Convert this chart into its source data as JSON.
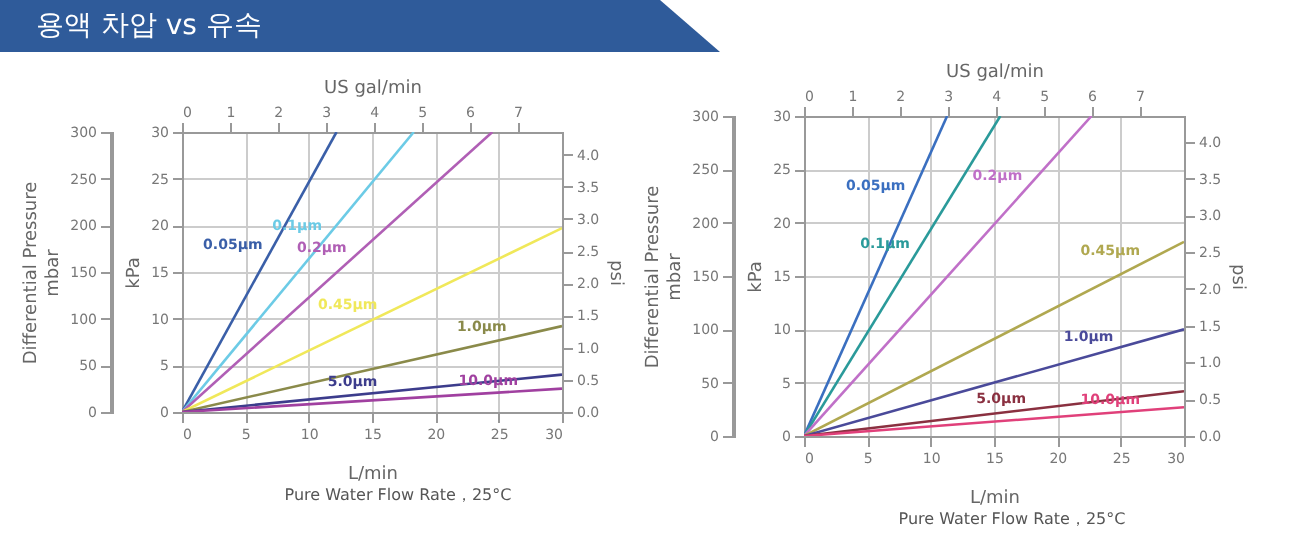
{
  "chart_data": [
    {
      "type": "line",
      "title": "용액 차압 vs 유속",
      "xlabel": "L/min",
      "x2label": "US gal/min",
      "ylabel": "kPa",
      "y2label": "psi",
      "y3label": "Differential Pressure\nmbar",
      "annotations": [
        "Pure Water Flow Rate，25°C"
      ],
      "xlim": [
        0,
        30
      ],
      "xticks": [
        0,
        5,
        10,
        15,
        20,
        25,
        30
      ],
      "x2lim": [
        0,
        7.93
      ],
      "x2ticks": [
        0,
        1,
        2,
        3,
        4,
        5,
        6,
        7
      ],
      "ylim": [
        0,
        30
      ],
      "yticks": [
        0,
        5,
        10,
        15,
        20,
        25,
        30
      ],
      "y2lim": [
        0,
        4.35
      ],
      "y2ticks": [
        {
          "value": 0,
          "label": "0.0"
        },
        {
          "value": 0.5,
          "label": "0.5"
        },
        {
          "value": 1,
          "label": "1.0"
        },
        {
          "value": 1.5,
          "label": "1.5"
        },
        {
          "value": 2,
          "label": "2.0"
        },
        {
          "value": 2.5,
          "label": "2.5"
        },
        {
          "value": 3,
          "label": "3.0"
        },
        {
          "value": 3.5,
          "label": "3.5"
        },
        {
          "value": 4,
          "label": "4.0"
        }
      ],
      "y3lim": [
        0,
        300
      ],
      "y3ticks": [
        0,
        50,
        100,
        150,
        200,
        250,
        300
      ],
      "grid": true,
      "legend": false,
      "series": [
        {
          "name": "0.05μm",
          "color": "#3a5fa8",
          "x": [
            0,
            12.2
          ],
          "values": [
            0,
            30
          ]
        },
        {
          "name": "0.1μm",
          "color": "#6ccbe6",
          "x": [
            0,
            18.3
          ],
          "values": [
            0,
            30
          ]
        },
        {
          "name": "0.2μm",
          "color": "#b05fb5",
          "x": [
            0,
            24.5
          ],
          "values": [
            0,
            30
          ]
        },
        {
          "name": "0.45μm",
          "color": "#f0e85a",
          "x": [
            0,
            30
          ],
          "values": [
            0,
            19.7
          ]
        },
        {
          "name": "1.0μm",
          "color": "#8a8a4a",
          "x": [
            0,
            30
          ],
          "values": [
            0,
            9.2
          ]
        },
        {
          "name": "5.0μm",
          "color": "#3c3c8c",
          "x": [
            0,
            30
          ],
          "values": [
            0,
            4
          ]
        },
        {
          "name": "10.0μm",
          "color": "#a040a0",
          "x": [
            0,
            30
          ],
          "values": [
            0,
            2.5
          ]
        }
      ]
    },
    {
      "type": "line",
      "xlabel": "L/min",
      "x2label": "US gal/min",
      "ylabel": "kPa",
      "y2label": "psi",
      "y3label": "Differential Pressure\nmbar",
      "annotations": [
        "Pure Water Flow Rate，25°C"
      ],
      "xlim": [
        0,
        30
      ],
      "xticks": [
        0,
        5,
        10,
        15,
        20,
        25,
        30
      ],
      "x2lim": [
        0,
        7.93
      ],
      "x2ticks": [
        0,
        1,
        2,
        3,
        4,
        5,
        6,
        7
      ],
      "ylim": [
        0,
        30
      ],
      "yticks": [
        0,
        5,
        10,
        15,
        20,
        25,
        30
      ],
      "y2lim": [
        0,
        4.35
      ],
      "y2ticks": [
        {
          "value": 0,
          "label": "0.0"
        },
        {
          "value": 0.5,
          "label": "0.5"
        },
        {
          "value": 1,
          "label": "1.0"
        },
        {
          "value": 1.5,
          "label": "1.5"
        },
        {
          "value": 2,
          "label": "2.0"
        },
        {
          "value": 2.5,
          "label": "2.5"
        },
        {
          "value": 3,
          "label": "3.0"
        },
        {
          "value": 3.5,
          "label": "3.5"
        },
        {
          "value": 4,
          "label": "4.0"
        }
      ],
      "y3lim": [
        0,
        300
      ],
      "y3ticks": [
        0,
        50,
        100,
        150,
        200,
        250,
        300
      ],
      "grid": true,
      "legend": false,
      "series": [
        {
          "name": "0.05μm",
          "color": "#3a6fc0",
          "x": [
            0,
            11.3
          ],
          "values": [
            0,
            30
          ]
        },
        {
          "name": "0.1μm",
          "color": "#2a9a9a",
          "x": [
            0,
            15.5
          ],
          "values": [
            0,
            30
          ]
        },
        {
          "name": "0.2μm",
          "color": "#c070c8",
          "x": [
            0,
            22.7
          ],
          "values": [
            0,
            30
          ]
        },
        {
          "name": "0.45μm",
          "color": "#b0a850",
          "x": [
            0,
            30
          ],
          "values": [
            0,
            18.2
          ]
        },
        {
          "name": "1.0μm",
          "color": "#4a4a9a",
          "x": [
            0,
            30
          ],
          "values": [
            0,
            10
          ]
        },
        {
          "name": "5.0μm",
          "color": "#8a3040",
          "x": [
            0,
            30
          ],
          "values": [
            0,
            4.2
          ]
        },
        {
          "name": "10.0μm",
          "color": "#e0407a",
          "x": [
            0,
            30
          ],
          "values": [
            0,
            2.7
          ]
        }
      ]
    }
  ]
}
